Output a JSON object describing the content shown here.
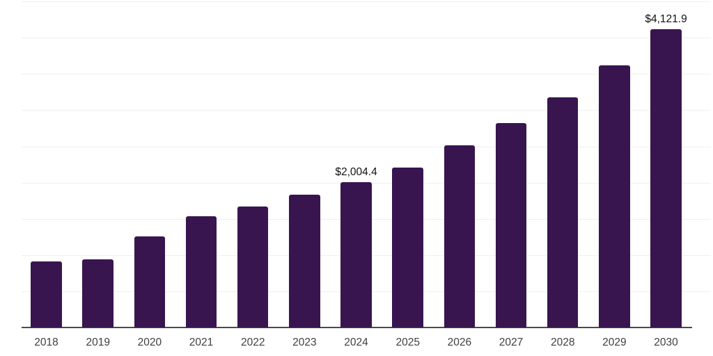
{
  "chart_data": {
    "type": "bar",
    "title": "",
    "xlabel": "",
    "ylabel": "",
    "categories": [
      "2018",
      "2019",
      "2020",
      "2021",
      "2022",
      "2023",
      "2024",
      "2025",
      "2026",
      "2027",
      "2028",
      "2029",
      "2030"
    ],
    "values": [
      910,
      945,
      1262,
      1532,
      1670,
      1830,
      2004.4,
      2212,
      2510,
      2820,
      3180,
      3620,
      4121.9
    ],
    "value_prefix": "$",
    "annotations": [
      {
        "category": "2024",
        "text": "$2,004.4"
      },
      {
        "category": "2030",
        "text": "$4,121.9"
      }
    ],
    "ylim": [
      0,
      4500
    ],
    "grid_step": 500,
    "grid": "horizontal",
    "legend": "none",
    "colors": {
      "bar": "#38154F",
      "gridline": "#efefef",
      "axis_line": "#4a4a4a",
      "tick_label": "#3f3f3f",
      "annotation": "#111111",
      "background": "#ffffff"
    }
  }
}
